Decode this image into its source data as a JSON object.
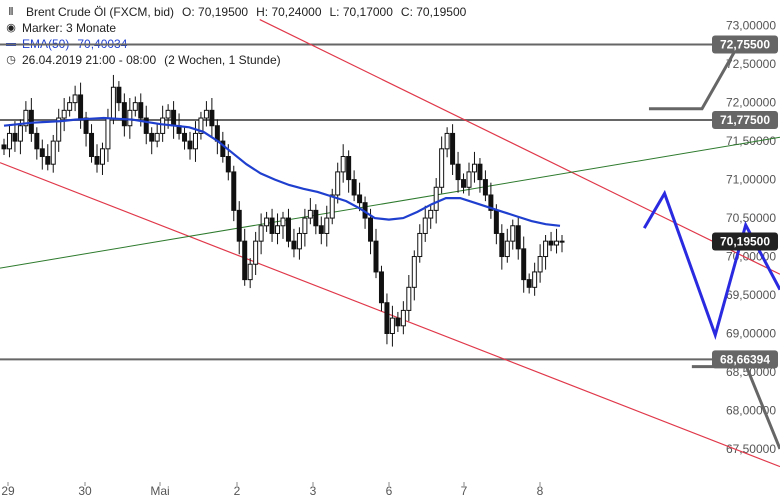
{
  "header": {
    "instrument_label": "Brent Crude Öl (FXCM, bid)",
    "open_label": "O: 70,19500",
    "high_label": "H: 70,24000",
    "low_label": "L: 70,17000",
    "close_label": "C: 70,19500",
    "marker_label": "Marker: 3 Monate",
    "ema_label": "EMA(50)",
    "ema_value": "70,40034",
    "timespan_label": "26.04.2019 21:00 - 08:00",
    "period_label": "(2 Wochen, 1 Stunde)"
  },
  "colors": {
    "candle": "#111111",
    "ema": "#1f3fcf",
    "channel": "#e0384a",
    "trendline": "#2d7a2d",
    "level_line": "#666666",
    "projection": "#2a2ae0",
    "box_dark": "#222222",
    "box_mid": "#666666"
  },
  "chart_data": {
    "type": "candlestick",
    "y_range": [
      67.2,
      73.1
    ],
    "y_ticks": [
      {
        "value": 73.0,
        "label": "73,00000"
      },
      {
        "value": 72.5,
        "label": "72,50000"
      },
      {
        "value": 72.0,
        "label": "72,00000"
      },
      {
        "value": 71.5,
        "label": "71,50000"
      },
      {
        "value": 71.0,
        "label": "71,00000"
      },
      {
        "value": 70.5,
        "label": "70,50000"
      },
      {
        "value": 70.0,
        "label": "70,00000"
      },
      {
        "value": 69.5,
        "label": "69,50000"
      },
      {
        "value": 69.0,
        "label": "69,00000"
      },
      {
        "value": 68.5,
        "label": "68,50000"
      },
      {
        "value": 68.0,
        "label": "68,00000"
      },
      {
        "value": 67.5,
        "label": "67,50000"
      }
    ],
    "x_ticks": [
      "29",
      "30",
      "Mai",
      "2",
      "3",
      "6",
      "7",
      "8"
    ],
    "price_boxes": [
      {
        "value": 72.755,
        "label": "72,75500",
        "style": "mid"
      },
      {
        "value": 71.775,
        "label": "71,77500",
        "style": "mid"
      },
      {
        "value": 70.195,
        "label": "70,19500",
        "style": "dark"
      },
      {
        "value": 68.66394,
        "label": "68,66394",
        "style": "mid"
      }
    ],
    "close_series": [
      71.4,
      71.6,
      71.5,
      71.7,
      71.9,
      71.6,
      71.4,
      71.3,
      71.2,
      71.5,
      71.8,
      71.9,
      72.0,
      72.1,
      71.8,
      71.6,
      71.3,
      71.2,
      71.4,
      71.8,
      72.2,
      72.0,
      71.7,
      71.9,
      72.0,
      71.8,
      71.6,
      71.5,
      71.6,
      71.8,
      71.9,
      71.7,
      71.6,
      71.5,
      71.4,
      71.6,
      71.8,
      71.9,
      71.7,
      71.5,
      71.3,
      71.1,
      70.6,
      70.2,
      69.7,
      69.9,
      70.2,
      70.4,
      70.5,
      70.3,
      70.4,
      70.5,
      70.2,
      70.1,
      70.3,
      70.5,
      70.6,
      70.4,
      70.3,
      70.5,
      70.8,
      71.1,
      71.3,
      71.0,
      70.8,
      70.7,
      70.5,
      70.2,
      69.8,
      69.4,
      69.0,
      69.2,
      69.1,
      69.3,
      69.6,
      70.0,
      70.3,
      70.5,
      70.6,
      70.9,
      71.4,
      71.6,
      71.2,
      71.0,
      70.9,
      71.1,
      71.2,
      71.0,
      70.8,
      70.6,
      70.3,
      70.0,
      70.2,
      70.4,
      70.1,
      69.7,
      69.6,
      69.8,
      70.0,
      70.2,
      70.15,
      70.2,
      70.195
    ],
    "ema_series": [
      71.7,
      71.72,
      71.74,
      71.75,
      71.76,
      71.78,
      71.79,
      71.8,
      71.79,
      71.78,
      71.75,
      71.72,
      71.7,
      71.68,
      71.62,
      71.5,
      71.35,
      71.2,
      71.08,
      71.0,
      70.93,
      70.88,
      70.84,
      70.78,
      70.72,
      70.62,
      70.5,
      70.48,
      70.5,
      70.58,
      70.68,
      70.76,
      70.76,
      70.7,
      70.64,
      70.58,
      70.52,
      70.46,
      70.42,
      70.4
    ],
    "channel_upper": {
      "x1_frac": 0.333,
      "y1": 73.08,
      "x2_frac": 1.0,
      "y2": 69.77
    },
    "channel_lower": {
      "x1_frac": 0.0,
      "y1": 71.22,
      "x2_frac": 1.0,
      "y2": 67.27
    },
    "trendline": {
      "x1_frac": 0.0,
      "y1": 69.85,
      "x2_frac": 1.0,
      "y2": 71.55
    },
    "level_lines": [
      72.755,
      71.775,
      68.66394
    ],
    "projection_zigzag": [
      [
        0.826,
        70.37
      ],
      [
        0.852,
        70.82
      ],
      [
        0.917,
        68.98
      ],
      [
        0.956,
        70.41
      ],
      [
        1.0,
        69.57
      ]
    ],
    "grey_upper_path": [
      [
        0.832,
        71.92
      ],
      [
        0.9,
        71.92
      ],
      [
        0.941,
        72.65
      ]
    ],
    "grey_lower_path": [
      [
        0.887,
        68.57
      ],
      [
        0.957,
        68.57
      ],
      [
        1.0,
        67.5
      ]
    ]
  }
}
